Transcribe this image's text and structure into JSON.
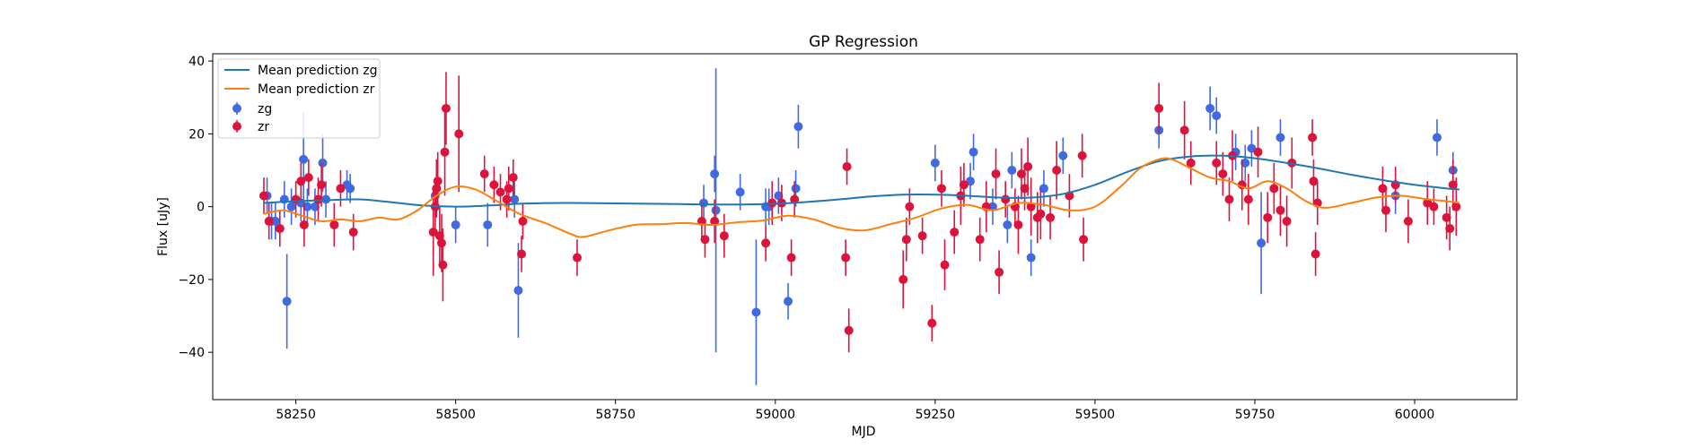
{
  "chart_data": {
    "type": "scatter",
    "title": "GP Regression",
    "xlabel": "MJD",
    "ylabel": "Flux [uJy]",
    "xlim": [
      58120,
      60160
    ],
    "ylim": [
      -53,
      42
    ],
    "xticks": [
      58250,
      58500,
      58750,
      59000,
      59250,
      59500,
      59750,
      60000
    ],
    "yticks": [
      -40,
      -20,
      0,
      20,
      40
    ],
    "legend_position": "top-left",
    "colors": {
      "zg_line": "#1f77b4",
      "zr_line": "#ff7f0e",
      "zg_points": "#4169e1",
      "zr_points": "#dc143c"
    },
    "legend": {
      "line_zg": "Mean prediction zg",
      "line_zr": "Mean prediction zr",
      "points_zg": "zg",
      "points_zr": "zr"
    },
    "series": [
      {
        "name": "Mean prediction zg",
        "kind": "line",
        "x": [
          58200,
          58250,
          58300,
          58350,
          58400,
          58450,
          58500,
          58550,
          58600,
          58650,
          58700,
          58750,
          58800,
          58850,
          58900,
          58950,
          59000,
          59050,
          59100,
          59150,
          59200,
          59250,
          59300,
          59350,
          59400,
          59450,
          59500,
          59550,
          59600,
          59650,
          59700,
          59750,
          59800,
          59850,
          59900,
          59950,
          60000,
          60050,
          60070
        ],
        "y": [
          1.0,
          1.5,
          1.8,
          2.0,
          1.2,
          0.3,
          0.0,
          0.3,
          0.8,
          1.0,
          1.0,
          0.9,
          0.8,
          0.7,
          0.6,
          0.6,
          0.8,
          1.3,
          2.0,
          2.8,
          3.3,
          3.3,
          3.0,
          2.5,
          2.5,
          3.5,
          6.0,
          9.5,
          12.5,
          13.8,
          14.0,
          13.3,
          12.0,
          10.5,
          8.8,
          7.3,
          6.0,
          5.0,
          4.7
        ]
      },
      {
        "name": "Mean prediction zr",
        "kind": "line",
        "x": [
          58200,
          58230,
          58260,
          58290,
          58320,
          58350,
          58380,
          58410,
          58440,
          58470,
          58500,
          58530,
          58560,
          58600,
          58640,
          58680,
          58700,
          58740,
          58780,
          58820,
          58860,
          58900,
          58940,
          58980,
          59020,
          59060,
          59100,
          59140,
          59180,
          59220,
          59260,
          59300,
          59340,
          59380,
          59420,
          59460,
          59500,
          59540,
          59570,
          59600,
          59620,
          59650,
          59680,
          59710,
          59740,
          59770,
          59800,
          59830,
          59860,
          59900,
          59940,
          59980,
          60020,
          60050,
          60070
        ],
        "y": [
          -2.0,
          -1.0,
          -2.5,
          -4.0,
          -3.5,
          -4.0,
          -3.0,
          -3.5,
          -1.0,
          3.0,
          5.5,
          4.8,
          2.0,
          -2.0,
          -4.5,
          -7.5,
          -8.3,
          -6.5,
          -5.0,
          -4.8,
          -4.5,
          -5.0,
          -4.3,
          -3.8,
          -2.5,
          -3.5,
          -5.8,
          -6.5,
          -4.8,
          -3.0,
          -0.5,
          0.5,
          -1.0,
          1.0,
          0.5,
          -1.0,
          0.0,
          5.5,
          10.5,
          13.0,
          13.0,
          10.5,
          8.0,
          7.0,
          5.0,
          7.0,
          5.0,
          1.5,
          -0.3,
          1.0,
          2.5,
          3.0,
          2.0,
          1.5,
          1.0
        ]
      },
      {
        "name": "zg",
        "kind": "errorbar",
        "x": [
          58205,
          58212,
          58218,
          58232,
          58236,
          58243,
          58258,
          58262,
          58268,
          58280,
          58292,
          58297,
          58330,
          58335,
          58468,
          58500,
          58550,
          58592,
          58598,
          58888,
          58905,
          58907,
          58945,
          58970,
          58985,
          58990,
          59005,
          59020,
          59032,
          59036,
          59250,
          59305,
          59310,
          59340,
          59363,
          59370,
          59400,
          59420,
          59450,
          59600,
          59680,
          59690,
          59720,
          59735,
          59745,
          59760,
          59790,
          59970,
          60035,
          60060
        ],
        "y": [
          3,
          -4,
          -4,
          2,
          -26,
          0,
          1,
          13,
          0,
          0,
          12,
          2,
          6,
          5,
          3,
          -5,
          -5,
          2,
          -23,
          1,
          9,
          -1,
          4,
          -29,
          0,
          0,
          3,
          -26,
          5,
          22,
          12,
          7,
          15,
          0,
          -5,
          10,
          -14,
          5,
          14,
          21,
          27,
          25,
          15,
          12,
          16,
          -10,
          19,
          3,
          19,
          10
        ],
        "err": [
          5,
          5,
          5,
          5,
          13,
          5,
          5,
          13,
          5,
          5,
          8,
          5,
          4,
          4,
          5,
          5,
          6,
          5,
          13,
          5,
          5,
          39,
          5,
          20,
          5,
          5,
          5,
          5,
          5,
          6,
          5,
          5,
          5,
          5,
          5,
          5,
          5,
          5,
          5,
          5,
          6,
          5,
          5,
          5,
          5,
          14,
          5,
          5,
          5,
          5
        ]
      },
      {
        "name": "zr",
        "kind": "errorbar",
        "x": [
          58200,
          58208,
          58225,
          58250,
          58258,
          58263,
          58270,
          58285,
          58290,
          58310,
          58320,
          58340,
          58465,
          58468,
          58470,
          58472,
          58475,
          58478,
          58480,
          58483,
          58485,
          58505,
          58545,
          58560,
          58570,
          58580,
          58583,
          58590,
          58603,
          58605,
          58690,
          58885,
          58890,
          58905,
          58920,
          58985,
          58995,
          59010,
          59025,
          59030,
          59110,
          59112,
          59115,
          59200,
          59205,
          59210,
          59230,
          59245,
          59260,
          59265,
          59280,
          59290,
          59295,
          59320,
          59330,
          59345,
          59350,
          59360,
          59375,
          59380,
          59385,
          59390,
          59395,
          59400,
          59410,
          59415,
          59430,
          59440,
          59460,
          59480,
          59482,
          59600,
          59640,
          59650,
          59690,
          59700,
          59710,
          59715,
          59730,
          59740,
          59755,
          59770,
          59780,
          59790,
          59800,
          59808,
          59840,
          59842,
          59845,
          59848,
          59950,
          59955,
          59970,
          59990,
          60020,
          60030,
          60050,
          60055,
          60060,
          60065
        ],
        "y": [
          3,
          -4,
          -6,
          2,
          7,
          -5,
          8,
          2,
          6,
          -5,
          5,
          -7,
          -7,
          0,
          5,
          7,
          -8,
          -10,
          -16,
          15,
          27,
          20,
          9,
          6,
          4,
          2,
          5,
          8,
          -13,
          -4,
          -14,
          -4,
          -9,
          -4,
          -8,
          -10,
          1,
          1,
          -14,
          2,
          -14,
          11,
          -34,
          -20,
          -9,
          0,
          -8,
          -32,
          5,
          -16,
          -7,
          3,
          6,
          -9,
          0,
          9,
          -18,
          2,
          0,
          -5,
          9,
          5,
          11,
          0,
          -3,
          -2,
          -3,
          10,
          3,
          14,
          -9,
          27,
          21,
          12,
          12,
          9,
          2,
          14,
          6,
          2,
          15,
          -3,
          5,
          -1,
          -4,
          12,
          19,
          7,
          -13,
          1,
          5,
          -1,
          6,
          -4,
          1,
          0,
          -3,
          -6,
          6,
          0
        ],
        "err": [
          5,
          5,
          5,
          5,
          5,
          6,
          5,
          6,
          6,
          6,
          5,
          5,
          12,
          8,
          8,
          8,
          8,
          8,
          10,
          12,
          10,
          16,
          5,
          5,
          5,
          5,
          6,
          5,
          5,
          5,
          5,
          5,
          5,
          6,
          6,
          5,
          6,
          5,
          5,
          5,
          5,
          5,
          6,
          8,
          6,
          5,
          5,
          5,
          5,
          7,
          6,
          8,
          6,
          6,
          7,
          7,
          6,
          5,
          5,
          8,
          7,
          6,
          8,
          8,
          7,
          7,
          6,
          8,
          6,
          6,
          6,
          7,
          8,
          6,
          6,
          6,
          6,
          7,
          7,
          7,
          7,
          7,
          7,
          7,
          7,
          7,
          5,
          6,
          6,
          6,
          6,
          6,
          5,
          6,
          6,
          5,
          6,
          6,
          7,
          8
        ]
      }
    ]
  }
}
